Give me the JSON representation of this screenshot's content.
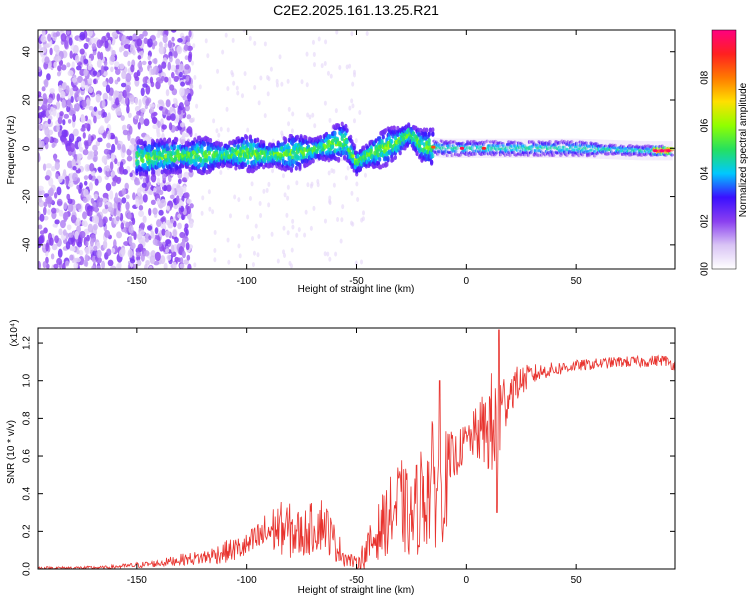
{
  "title": "C2E2.2025.161.13.25.R21",
  "colors": {
    "snr_line": "#e8332e",
    "axis": "#000000",
    "background": "#ffffff"
  },
  "chart_data": [
    {
      "type": "heatmap",
      "name": "spectrogram",
      "xlabel": "Height of straight line (km)",
      "ylabel": "Frequency (Hz)",
      "xlim": [
        -195,
        95
      ],
      "ylim": [
        -50,
        49
      ],
      "xticks": [
        -150,
        -100,
        -50,
        0,
        50
      ],
      "yticks": [
        -40,
        -20,
        0,
        20,
        40
      ],
      "colorbar": {
        "label": "Normalized spectral amplitude",
        "range": [
          0,
          1
        ],
        "ticks": [
          0.0,
          0.2,
          0.4,
          0.6,
          0.8
        ],
        "colormap": [
          "#ffffff",
          "#d9c4f5",
          "#8a3ff0",
          "#3a10ff",
          "#00c8ff",
          "#25e060",
          "#90ff00",
          "#ffe000",
          "#ff7a00",
          "#ff2020",
          "#ff0080"
        ]
      },
      "band_center_hz": [
        {
          "x": -145,
          "f": -4
        },
        {
          "x": -130,
          "f": -3
        },
        {
          "x": -115,
          "f": -3
        },
        {
          "x": -100,
          "f": -2
        },
        {
          "x": -90,
          "f": -3
        },
        {
          "x": -80,
          "f": -2
        },
        {
          "x": -70,
          "f": -1
        },
        {
          "x": -60,
          "f": 2
        },
        {
          "x": -55,
          "f": 3
        },
        {
          "x": -50,
          "f": -6
        },
        {
          "x": -45,
          "f": -3
        },
        {
          "x": -40,
          "f": -1
        },
        {
          "x": -35,
          "f": 1
        },
        {
          "x": -30,
          "f": 3
        },
        {
          "x": -26,
          "f": 6
        },
        {
          "x": -20,
          "f": 1
        },
        {
          "x": -10,
          "f": 0
        },
        {
          "x": 0,
          "f": 0
        },
        {
          "x": 20,
          "f": 0
        },
        {
          "x": 50,
          "f": 0
        },
        {
          "x": 80,
          "f": -1
        },
        {
          "x": 93,
          "f": -1
        }
      ]
    },
    {
      "type": "line",
      "name": "snr",
      "xlabel": "Height of straight line (km)",
      "ylabel": "SNR (10 * v/v)",
      "scale_label": "(x10⁴)",
      "xlim": [
        -195,
        95
      ],
      "ylim": [
        0,
        1.28
      ],
      "xticks": [
        -150,
        -100,
        -50,
        0,
        50
      ],
      "yticks": [
        0.0,
        0.2,
        0.4,
        0.6,
        0.8,
        1.0,
        1.2
      ],
      "series": [
        {
          "name": "SNR",
          "x": [
            -195,
            -180,
            -165,
            -150,
            -140,
            -130,
            -120,
            -110,
            -100,
            -95,
            -90,
            -85,
            -80,
            -75,
            -70,
            -65,
            -60,
            -55,
            -50,
            -45,
            -40,
            -35,
            -30,
            -25,
            -20,
            -15,
            -10,
            -5,
            0,
            5,
            10,
            14,
            16,
            20,
            25,
            30,
            35,
            40,
            45,
            50,
            60,
            70,
            80,
            90,
            95
          ],
          "base": [
            0.005,
            0.006,
            0.008,
            0.02,
            0.03,
            0.05,
            0.06,
            0.09,
            0.12,
            0.16,
            0.2,
            0.22,
            0.2,
            0.18,
            0.22,
            0.25,
            0.14,
            0.06,
            0.03,
            0.1,
            0.2,
            0.28,
            0.35,
            0.25,
            0.4,
            0.45,
            0.45,
            0.6,
            0.68,
            0.72,
            0.75,
            0.7,
            0.85,
            0.95,
            1.0,
            1.03,
            1.05,
            1.06,
            1.07,
            1.08,
            1.09,
            1.1,
            1.1,
            1.11,
            1.08
          ],
          "noise": [
            0.008,
            0.008,
            0.008,
            0.015,
            0.02,
            0.03,
            0.04,
            0.06,
            0.07,
            0.09,
            0.12,
            0.14,
            0.15,
            0.13,
            0.14,
            0.15,
            0.1,
            0.05,
            0.03,
            0.1,
            0.15,
            0.2,
            0.25,
            0.22,
            0.3,
            0.35,
            0.3,
            0.12,
            0.1,
            0.15,
            0.25,
            0.45,
            0.2,
            0.12,
            0.08,
            0.06,
            0.04,
            0.04,
            0.035,
            0.03,
            0.03,
            0.03,
            0.03,
            0.03,
            0.03
          ],
          "peaks": [
            {
              "x": -12,
              "y": 1.0
            },
            {
              "x": 15,
              "y": 1.27
            },
            {
              "x": 14,
              "y": 0.3
            }
          ]
        }
      ]
    }
  ]
}
